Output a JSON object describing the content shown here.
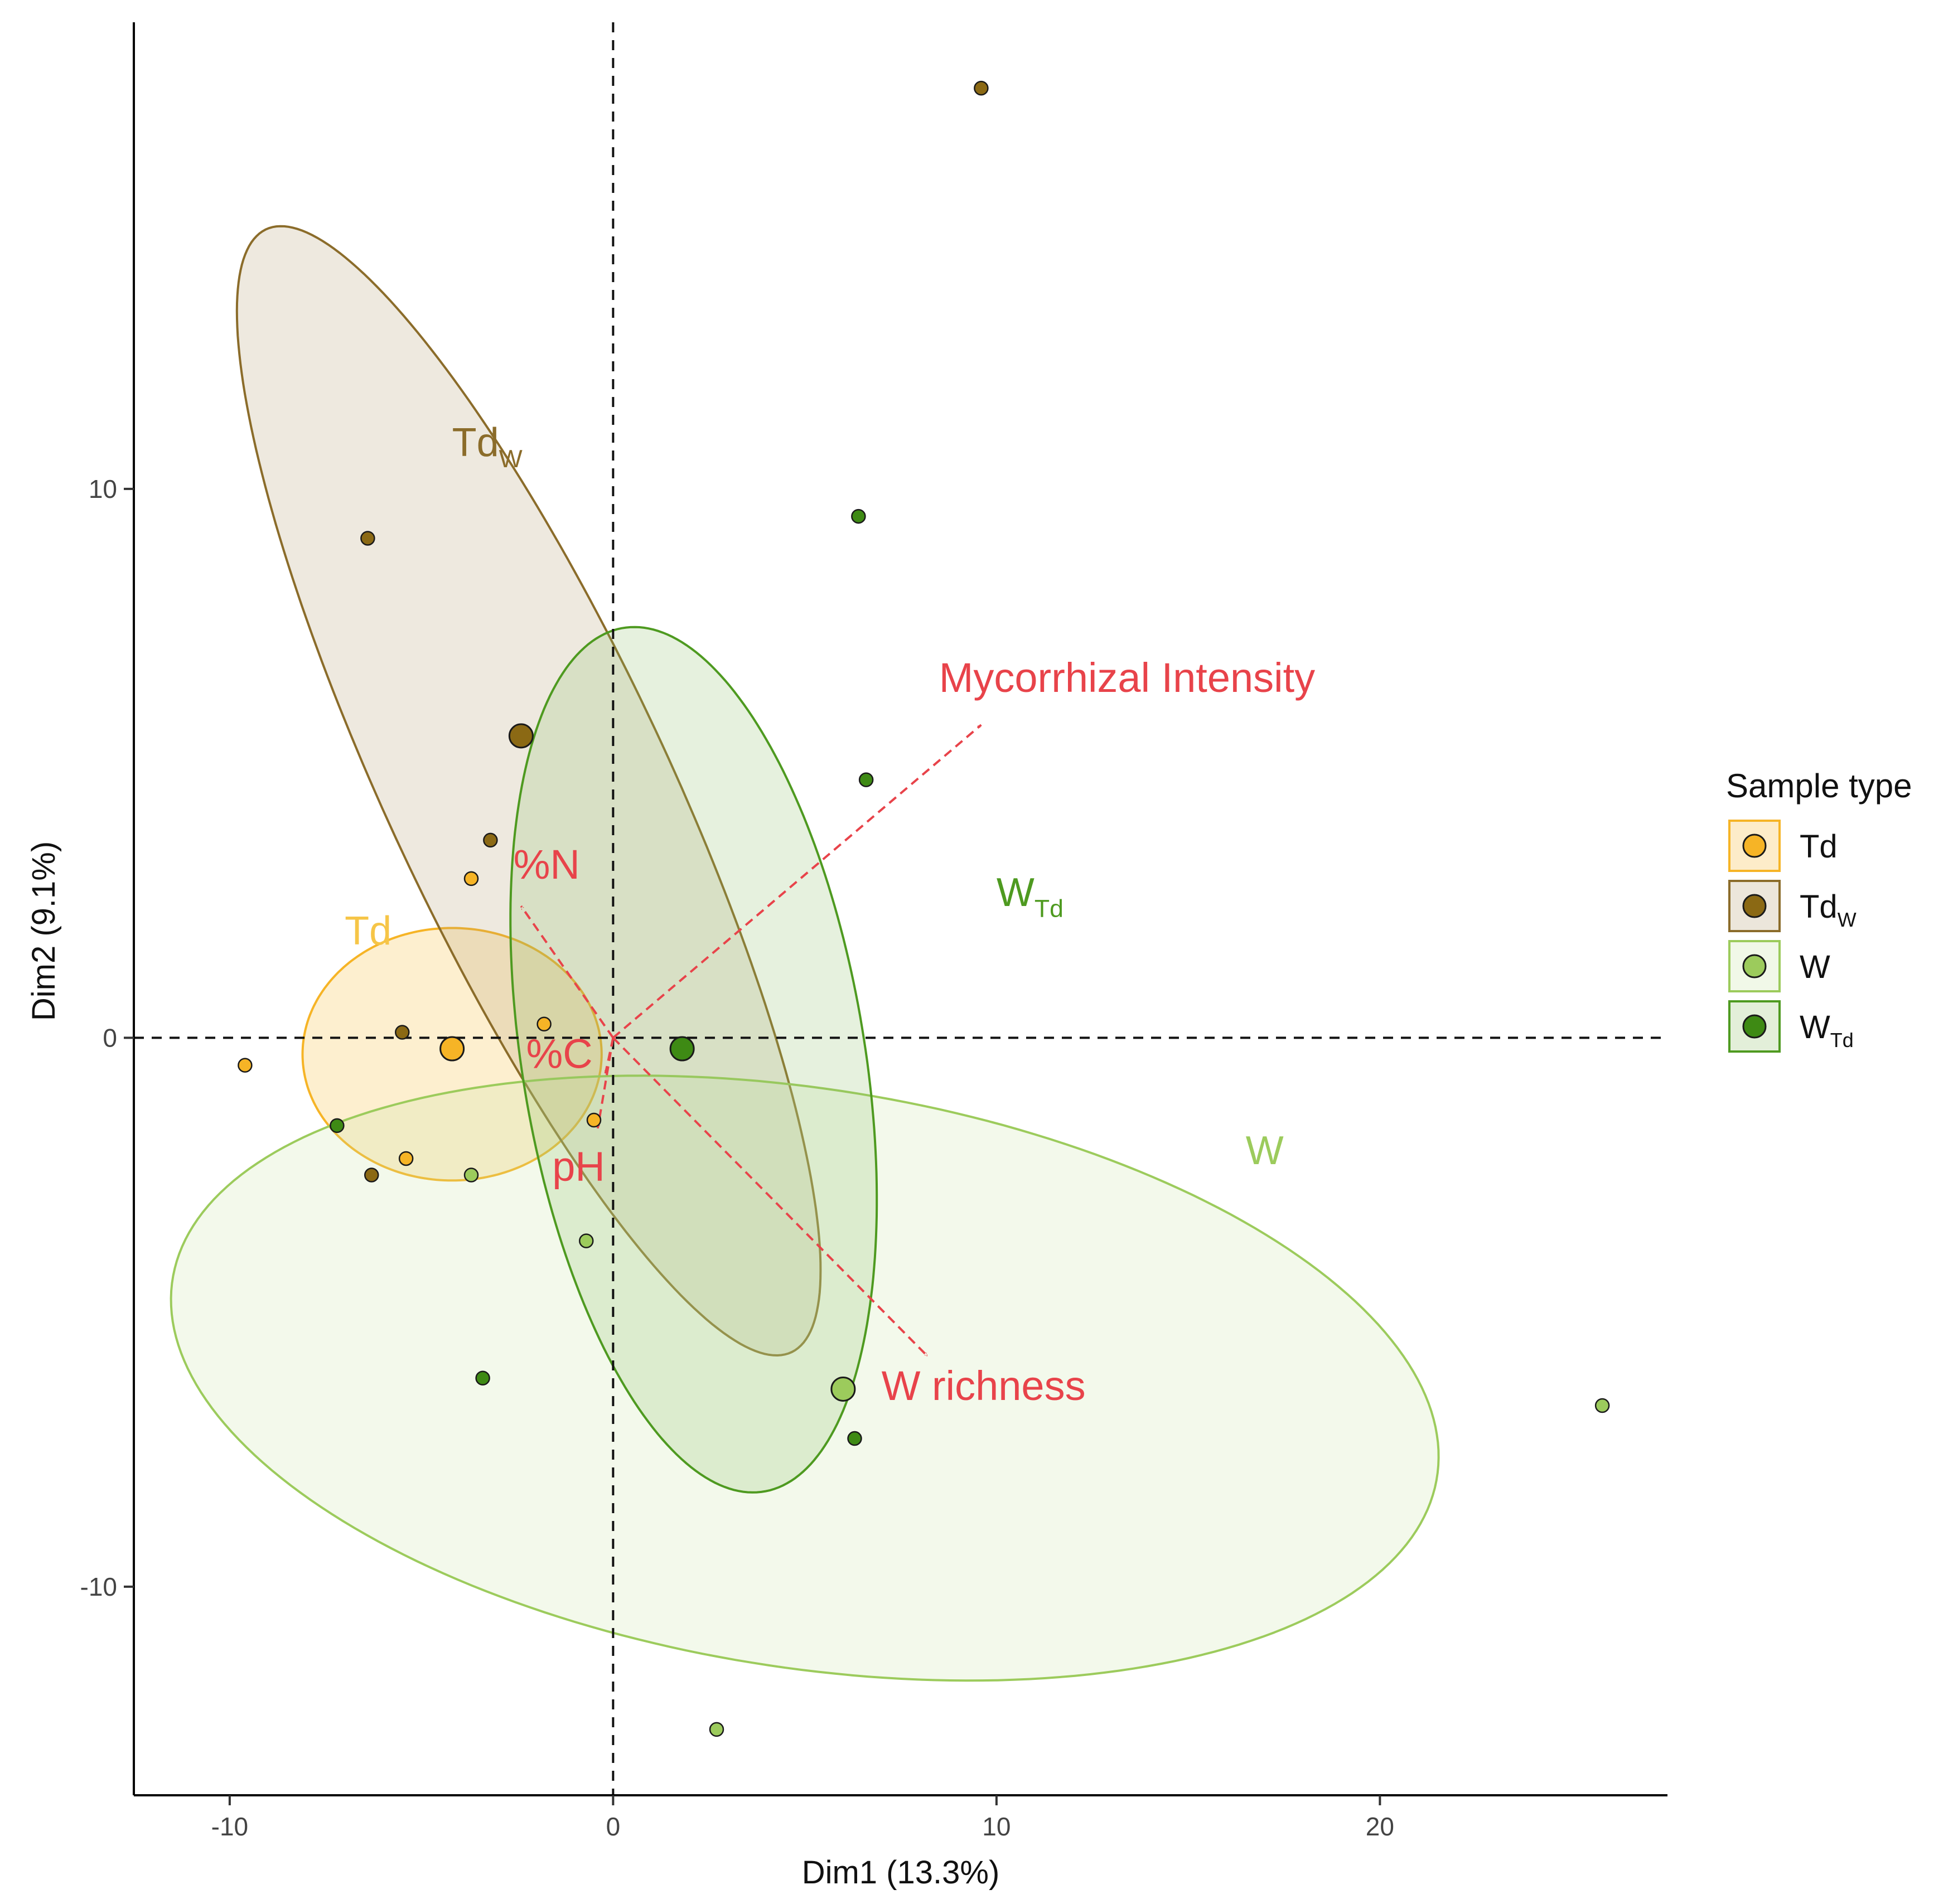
{
  "chart_data": {
    "type": "scatter",
    "subtype": "pca-biplot",
    "xlabel": "Dim1 (13.3%)",
    "ylabel": "Dim2 (9.1%)",
    "xlim": [
      -12.5,
      27.5
    ],
    "ylim": [
      -13.8,
      18.5
    ],
    "x_ticks": [
      {
        "value": -10,
        "label": "-10"
      },
      {
        "value": 0,
        "label": "0"
      },
      {
        "value": 10,
        "label": "10"
      },
      {
        "value": 20,
        "label": "20"
      }
    ],
    "y_ticks": [
      {
        "value": -10,
        "label": "-10"
      },
      {
        "value": 0,
        "label": "0"
      },
      {
        "value": 10,
        "label": "10"
      }
    ],
    "reference_lines": {
      "x": 0,
      "y": 0,
      "style": "dashed"
    },
    "legend": {
      "title": "Sample type",
      "placement": "right",
      "entries": [
        {
          "id": "Td",
          "base": "Td",
          "sub": ""
        },
        {
          "id": "TdW",
          "base": "Td",
          "sub": "W"
        },
        {
          "id": "W",
          "base": "W",
          "sub": ""
        },
        {
          "id": "WTd",
          "base": "W",
          "sub": "Td"
        }
      ]
    },
    "series": [
      {
        "id": "Td",
        "base": "Td",
        "sub": "",
        "fill": "#F6B426",
        "stroke": "#F6B426",
        "ellipse_fill": "#F6B426",
        "label_color": "#F6C547",
        "label_pos": [
          -7.0,
          1.7
        ],
        "ellipse": {
          "cx": -4.2,
          "cy": -0.3,
          "rx": 3.9,
          "ry": 2.3,
          "angle_deg": 0
        },
        "centroid": [
          -4.2,
          -0.2
        ],
        "points": [
          [
            -9.6,
            -0.5
          ],
          [
            -3.7,
            2.9
          ],
          [
            -5.4,
            -2.2
          ],
          [
            -1.8,
            0.25
          ],
          [
            -0.5,
            -1.5
          ]
        ]
      },
      {
        "id": "TdW",
        "base": "Td",
        "sub": "W",
        "fill": "#8B6914",
        "stroke": "#8B6C2A",
        "ellipse_fill": "#B39D6E",
        "label_color": "#8B6C2A",
        "label_pos": [
          -4.2,
          10.6
        ],
        "ellipse": {
          "cx": -2.2,
          "cy": 4.5,
          "rx": 12.35,
          "ry": 3.35,
          "angle_deg": -54.9
        },
        "centroid": [
          -2.4,
          5.5
        ],
        "points": [
          [
            -6.4,
            9.1
          ],
          [
            9.6,
            17.3
          ],
          [
            -3.2,
            3.6
          ],
          [
            -5.5,
            0.1
          ],
          [
            -6.3,
            -2.5
          ]
        ]
      },
      {
        "id": "W",
        "base": "W",
        "sub": "",
        "fill": "#9CCB5C",
        "stroke": "#9CCB5C",
        "ellipse_fill": "#C9E2A2",
        "label_color": "#9CCB5C",
        "label_pos": [
          16.5,
          -2.3
        ],
        "ellipse": {
          "cx": 5.0,
          "cy": -6.2,
          "rx": 16.6,
          "ry": 5.3,
          "angle_deg": -5.5
        },
        "centroid": [
          6.0,
          -6.4
        ],
        "points": [
          [
            -3.7,
            -2.5
          ],
          [
            -0.7,
            -3.7
          ],
          [
            2.7,
            -12.6
          ],
          [
            25.8,
            -6.7
          ]
        ]
      },
      {
        "id": "WTd",
        "base": "W",
        "sub": "Td",
        "fill": "#3E8A14",
        "stroke": "#4E9A20",
        "ellipse_fill": "#8FC068",
        "label_color": "#4E9A20",
        "label_pos": [
          10.0,
          2.4
        ],
        "ellipse": {
          "cx": 2.1,
          "cy": -0.4,
          "rx": 8.1,
          "ry": 4.4,
          "angle_deg": -74.1
        },
        "centroid": [
          1.8,
          -0.2
        ],
        "points": [
          [
            6.4,
            9.5
          ],
          [
            6.6,
            4.7
          ],
          [
            -7.2,
            -1.6
          ],
          [
            -3.4,
            -6.2
          ],
          [
            6.3,
            -7.3
          ]
        ]
      }
    ],
    "vectors": {
      "color": "#E8434A",
      "items": [
        {
          "label": "Mycorrhizal Intensity",
          "x": 9.6,
          "y": 5.7,
          "label_pos": [
            8.5,
            6.3
          ],
          "anchor": "start"
        },
        {
          "label": "%N",
          "x": -2.4,
          "y": 2.4,
          "label_pos": [
            -2.6,
            2.9
          ],
          "anchor": "start"
        },
        {
          "label": "%C",
          "x": -0.2,
          "y": -0.65,
          "label_pos": [
            -1.4,
            -0.55
          ],
          "anchor": "middle"
        },
        {
          "label": "pH",
          "x": -0.4,
          "y": -1.65,
          "label_pos": [
            -0.9,
            -2.6
          ],
          "anchor": "middle"
        },
        {
          "label": "W richness",
          "x": 8.2,
          "y": -5.8,
          "label_pos": [
            7.0,
            -6.6
          ],
          "anchor": "start"
        }
      ]
    }
  }
}
